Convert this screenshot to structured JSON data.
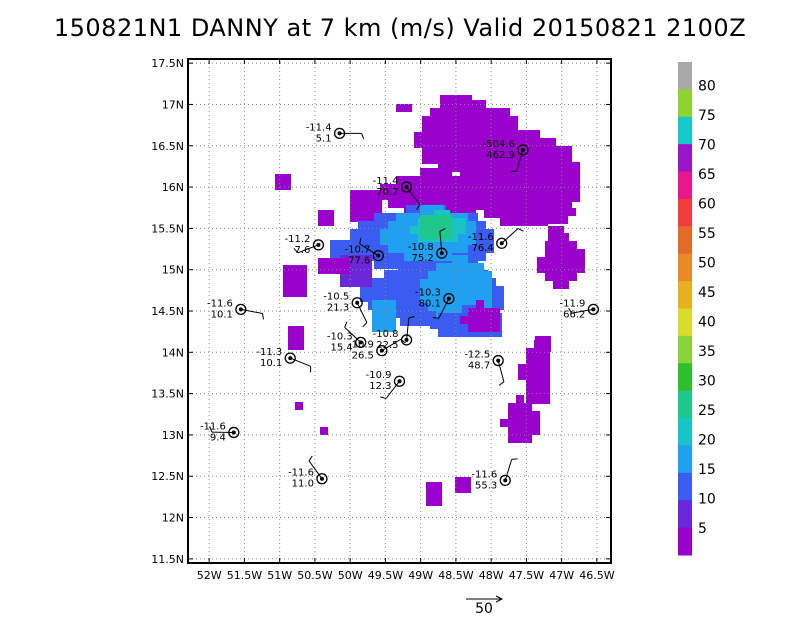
{
  "title": "150821N1 DANNY at 7 km (m/s) Valid 20150821 2100Z",
  "chart_data": {
    "type": "heatmap",
    "title": "150821N1 DANNY at 7 km (m/s) Valid 20150821 2100Z",
    "xlabel": "",
    "ylabel": "",
    "xlim": [
      -52.3,
      -46.3
    ],
    "ylim": [
      11.45,
      17.55
    ],
    "x_ticks": [
      "52W",
      "51.5W",
      "51W",
      "50.5W",
      "50W",
      "49.5W",
      "49W",
      "48.5W",
      "48W",
      "47.5W",
      "47W",
      "46.5W"
    ],
    "y_ticks": [
      "11.5N",
      "12N",
      "12.5N",
      "13N",
      "13.5N",
      "14N",
      "14.5N",
      "15N",
      "15.5N",
      "16N",
      "16.5N",
      "17N",
      "17.5N"
    ],
    "grid": true,
    "colorbar": {
      "labels": [
        "5",
        "10",
        "15",
        "20",
        "25",
        "30",
        "35",
        "40",
        "45",
        "50",
        "55",
        "60",
        "65",
        "70",
        "75",
        "80"
      ],
      "colors": [
        "#9900cc",
        "#6a28d8",
        "#3a5cf0",
        "#1fa0f0",
        "#16c6c6",
        "#1ec88a",
        "#2cc02c",
        "#8ad23a",
        "#d8dc2a",
        "#e8b020",
        "#e88a28",
        "#e46a2a",
        "#f03c3c",
        "#e8188c",
        "#9a14c8",
        "#16c8c8",
        "#90d230",
        "#a8a8a8"
      ]
    },
    "vector_reference": {
      "label": "50"
    },
    "observations": [
      {
        "lon": -50.15,
        "lat": 16.65,
        "v1": "-11.4",
        "v2": "5.1"
      },
      {
        "lon": -49.2,
        "lat": 16.0,
        "v1": "-11.4",
        "v2": "70.7"
      },
      {
        "lon": -47.55,
        "lat": 16.45,
        "v1": "-504.6",
        "v2": "462.9"
      },
      {
        "lon": -50.45,
        "lat": 15.3,
        "v1": "-11.2",
        "v2": "7.6"
      },
      {
        "lon": -49.6,
        "lat": 15.17,
        "v1": "-10.7",
        "v2": "77.6"
      },
      {
        "lon": -48.7,
        "lat": 15.2,
        "v1": "-10.8",
        "v2": "75.2"
      },
      {
        "lon": -47.85,
        "lat": 15.32,
        "v1": "-11.6",
        "v2": "76.4"
      },
      {
        "lon": -51.55,
        "lat": 14.52,
        "v1": "-11.6",
        "v2": "10.1"
      },
      {
        "lon": -49.9,
        "lat": 14.6,
        "v1": "-10.5",
        "v2": "21.3"
      },
      {
        "lon": -48.6,
        "lat": 14.65,
        "v1": "-10.3",
        "v2": "80.1"
      },
      {
        "lon": -46.55,
        "lat": 14.52,
        "v1": "-11.9",
        "v2": "66.2"
      },
      {
        "lon": -49.85,
        "lat": 14.12,
        "v1": "-10.3",
        "v2": "15.4"
      },
      {
        "lon": -49.2,
        "lat": 14.15,
        "v1": "-10.8",
        "v2": "22.5"
      },
      {
        "lon": -49.55,
        "lat": 14.02,
        "v1": "-10.9",
        "v2": "26.5"
      },
      {
        "lon": -50.85,
        "lat": 13.93,
        "v1": "-11.3",
        "v2": "10.1"
      },
      {
        "lon": -47.9,
        "lat": 13.9,
        "v1": "-12.5",
        "v2": "48.7"
      },
      {
        "lon": -49.3,
        "lat": 13.65,
        "v1": "-10.9",
        "v2": "12.3"
      },
      {
        "lon": -51.65,
        "lat": 13.03,
        "v1": "-11.6",
        "v2": "9.4"
      },
      {
        "lon": -50.4,
        "lat": 12.47,
        "v1": "-11.6",
        "v2": "11.0"
      },
      {
        "lon": -47.8,
        "lat": 12.45,
        "v1": "-11.6",
        "v2": "55.3"
      }
    ]
  }
}
